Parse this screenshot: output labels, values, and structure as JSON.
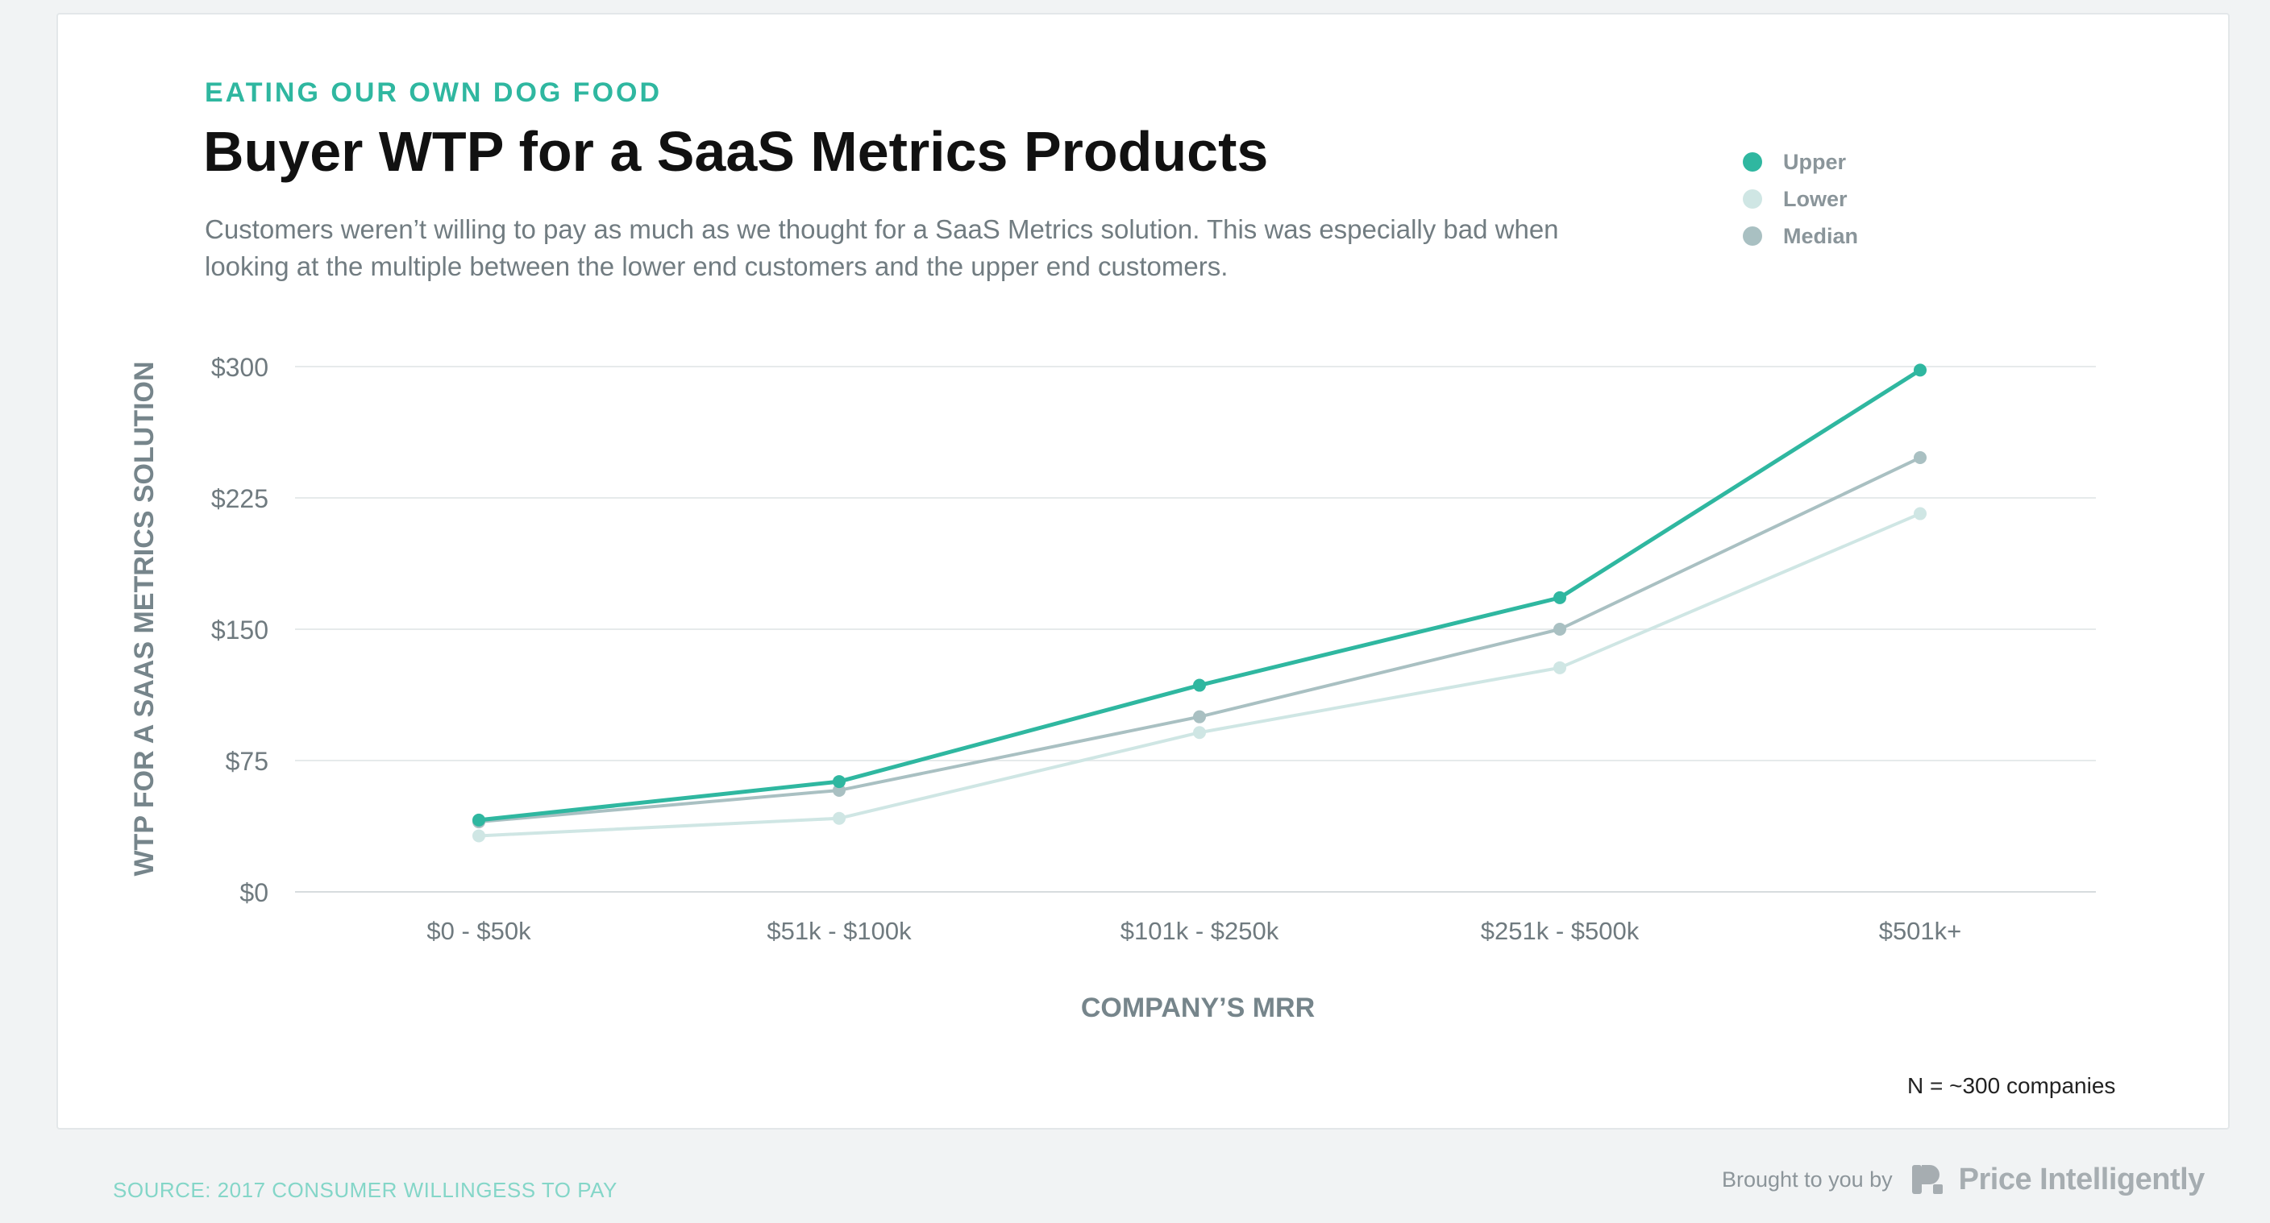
{
  "header": {
    "eyebrow": "EATING OUR OWN DOG FOOD",
    "title": "Buyer WTP for a SaaS Metrics Products",
    "subtitle": "Customers weren’t willing to pay as much as we thought for a SaaS Metrics solution. This was especially bad when looking at the multiple between the lower end customers and the upper end customers."
  },
  "legend": [
    {
      "label": "Upper",
      "color": "#2fb7a0"
    },
    {
      "label": "Lower",
      "color": "#cfe6e4"
    },
    {
      "label": "Median",
      "color": "#a9c0c2"
    }
  ],
  "chart_data": {
    "type": "line",
    "title": "Buyer WTP for a SaaS Metrics Products",
    "xlabel": "COMPANY’S MRR",
    "ylabel": "WTP FOR A SAAS METRICS SOLUTION",
    "categories": [
      "$0 - $50k",
      "$51k - $100k",
      "$101k - $250k",
      "$251k - $500k",
      "$501k+"
    ],
    "ylim": [
      0,
      300
    ],
    "yticks": [
      0,
      75,
      150,
      225,
      300
    ],
    "ytick_labels": [
      "$0",
      "$75",
      "$150",
      "$225",
      "$300"
    ],
    "grid": true,
    "legend_position": "top-right",
    "series": [
      {
        "name": "Upper",
        "color": "#2fb7a0",
        "values": [
          41,
          63,
          118,
          168,
          298
        ]
      },
      {
        "name": "Median",
        "color": "#a9c0c2",
        "values": [
          40,
          58,
          100,
          150,
          248
        ]
      },
      {
        "name": "Lower",
        "color": "#cfe6e4",
        "values": [
          32,
          42,
          91,
          128,
          216
        ]
      }
    ]
  },
  "footer": {
    "n_note": "N = ~300 companies",
    "source": "SOURCE: 2017 CONSUMER WILLINGESS TO PAY",
    "brought_by": "Brought to you by",
    "brand_name": "Price Intelligently"
  }
}
